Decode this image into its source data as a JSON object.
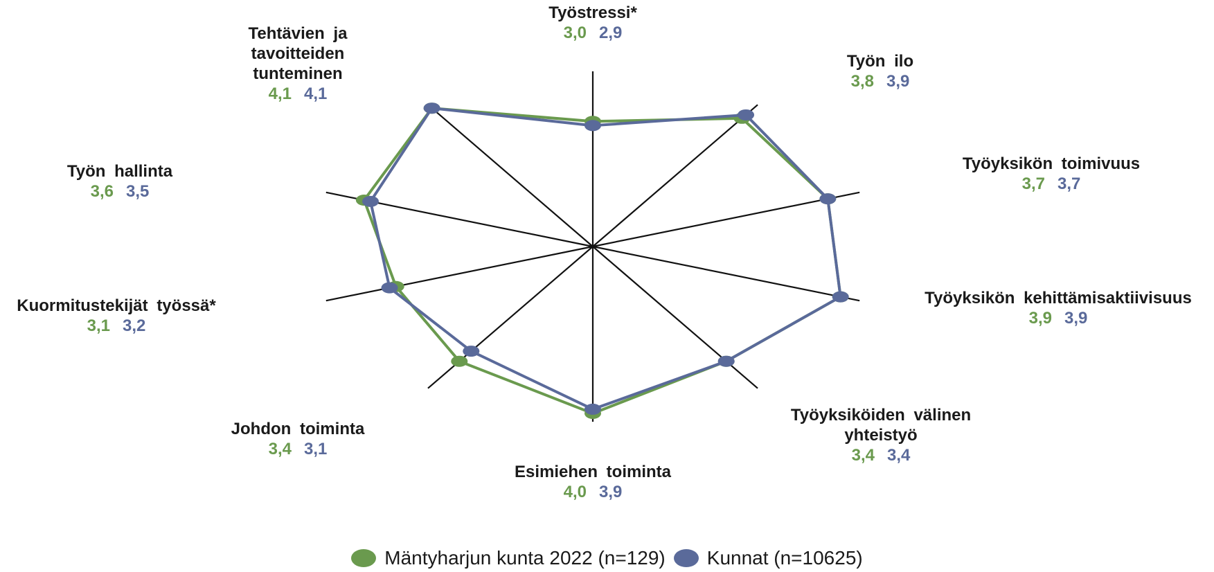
{
  "chart_data": {
    "type": "radar",
    "categories": [
      "Työstressi*",
      "Työn ilo",
      "Työyksikön toimivuus",
      "Työyksikön kehittämisaktiivisuus",
      "Työyksiköiden välinen yhteistyö",
      "Esimiehen toiminta",
      "Johdon toiminta",
      "Kuormitustekijät työssä*",
      "Työn hallinta",
      "Tehtävien ja tavoitteiden tunteminen"
    ],
    "rlim": [
      0,
      4.2
    ],
    "legend": "bottom",
    "series": [
      {
        "name": "Mäntyharjun kunta 2022 (n=129)",
        "color": "#6a9a4e",
        "values": [
          3.0,
          3.8,
          3.7,
          3.9,
          3.4,
          4.0,
          3.4,
          3.1,
          3.6,
          4.1
        ],
        "value_labels": [
          "3,0",
          "3,8",
          "3,7",
          "3,9",
          "3,4",
          "4,0",
          "3,4",
          "3,1",
          "3,6",
          "4,1"
        ]
      },
      {
        "name": "Kunnat (n=10625)",
        "color": "#5a6a9a",
        "values": [
          2.9,
          3.9,
          3.7,
          3.9,
          3.4,
          3.9,
          3.1,
          3.2,
          3.5,
          4.1
        ],
        "value_labels": [
          "2,9",
          "3,9",
          "3,7",
          "3,9",
          "3,4",
          "3,9",
          "3,1",
          "3,2",
          "3,5",
          "4,1"
        ]
      }
    ]
  }
}
